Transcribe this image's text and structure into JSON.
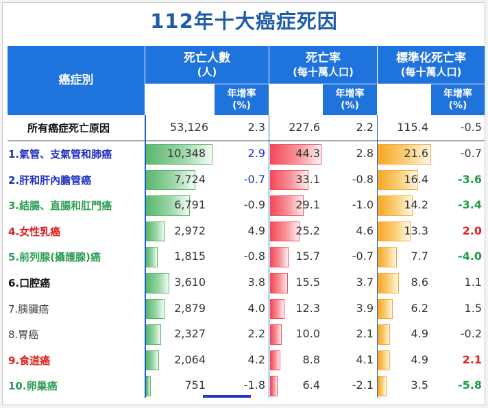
{
  "title": "112年十大癌症死因",
  "headers": {
    "category": "癌症別",
    "deaths": "死亡人數",
    "deaths_unit": "(人)",
    "rate": "死亡率",
    "rate_unit": "(每十萬人口)",
    "std_rate": "標準化死亡率",
    "std_rate_unit": "(每十萬人口)",
    "growth": "年增率",
    "growth_unit": "(%)"
  },
  "colors": {
    "header": "#1f73dc",
    "title": "#1f5ca8",
    "deaths_bar": "#5bb86d",
    "rate_bar": "#f24a57",
    "std_bar": "#f7a726"
  },
  "total_row": {
    "name": "所有癌症死亡原因",
    "deaths": "53,126",
    "deaths_growth": "2.3",
    "rate": "227.6",
    "rate_growth": "2.2",
    "std": "115.4",
    "std_growth": "-0.5"
  },
  "rows": [
    {
      "name": "1.氣管、支氣管和肺癌",
      "name_color": "#2030c0",
      "deaths": "10,348",
      "deaths_growth": "2.9",
      "deaths_growth_color": "#2030c0",
      "rate": "44.3",
      "rate_growth": "2.8",
      "std": "21.6",
      "std_growth": "-0.7",
      "std_growth_color": "#333333"
    },
    {
      "name": "2.肝和肝內膽管癌",
      "name_color": "#2030c0",
      "deaths": "7,724",
      "deaths_growth": "-0.7",
      "deaths_growth_color": "#2030c0",
      "rate": "33.1",
      "rate_growth": "-0.8",
      "std": "16.4",
      "std_growth": "-3.6",
      "std_growth_color": "#1f9a4a"
    },
    {
      "name": "3.結腸、直腸和肛門癌",
      "name_color": "#2e9e56",
      "deaths": "6,791",
      "deaths_growth": "-0.9",
      "deaths_growth_color": "#333333",
      "rate": "29.1",
      "rate_growth": "-1.0",
      "std": "14.2",
      "std_growth": "-3.4",
      "std_growth_color": "#1f9a4a"
    },
    {
      "name": "4.女性乳癌",
      "name_color": "#e02020",
      "deaths": "2,972",
      "deaths_growth": "4.9",
      "deaths_growth_color": "#333333",
      "rate": "25.2",
      "rate_growth": "4.6",
      "std": "13.3",
      "std_growth": "2.0",
      "std_growth_color": "#e02020"
    },
    {
      "name": "5.前列腺(攝護腺)癌",
      "name_color": "#2e9e56",
      "deaths": "1,815",
      "deaths_growth": "-0.8",
      "deaths_growth_color": "#333333",
      "rate": "15.7",
      "rate_growth": "-0.7",
      "std": "7.7",
      "std_growth": "-4.0",
      "std_growth_color": "#1f9a4a"
    },
    {
      "name": "6.口腔癌",
      "name_color": "#111111",
      "deaths": "3,610",
      "deaths_growth": "3.8",
      "deaths_growth_color": "#333333",
      "rate": "15.5",
      "rate_growth": "3.7",
      "std": "8.6",
      "std_growth": "1.1",
      "std_growth_color": "#333333"
    },
    {
      "name": "7.胰臟癌",
      "name_color": "#444444",
      "deaths": "2,879",
      "deaths_growth": "4.0",
      "deaths_growth_color": "#333333",
      "rate": "12.3",
      "rate_growth": "3.9",
      "std": "6.2",
      "std_growth": "1.5",
      "std_growth_color": "#333333"
    },
    {
      "name": "8.胃癌",
      "name_color": "#444444",
      "deaths": "2,327",
      "deaths_growth": "2.2",
      "deaths_growth_color": "#333333",
      "rate": "10.0",
      "rate_growth": "2.1",
      "std": "4.9",
      "std_growth": "-0.2",
      "std_growth_color": "#333333"
    },
    {
      "name": "9.食道癌",
      "name_color": "#e02020",
      "deaths": "2,064",
      "deaths_growth": "4.2",
      "deaths_growth_color": "#333333",
      "rate": "8.8",
      "rate_growth": "4.1",
      "std": "4.9",
      "std_growth": "2.1",
      "std_growth_color": "#e02020"
    },
    {
      "name": "10.卵巢癌",
      "name_color": "#2e9e56",
      "deaths": "751",
      "deaths_growth": "-1.8",
      "deaths_growth_color": "#333333",
      "rate": "6.4",
      "rate_growth": "-2.1",
      "std": "3.5",
      "std_growth": "-5.8",
      "std_growth_color": "#1f9a4a"
    }
  ],
  "bar_values": {
    "deaths": [
      10348,
      7724,
      6791,
      2972,
      1815,
      3610,
      2879,
      2327,
      2064,
      751
    ],
    "rate": [
      44.3,
      33.1,
      29.1,
      25.2,
      15.7,
      15.5,
      12.3,
      10.0,
      8.8,
      6.4
    ],
    "std": [
      21.6,
      16.4,
      14.2,
      13.3,
      7.7,
      8.6,
      6.2,
      4.9,
      4.9,
      3.5
    ]
  }
}
